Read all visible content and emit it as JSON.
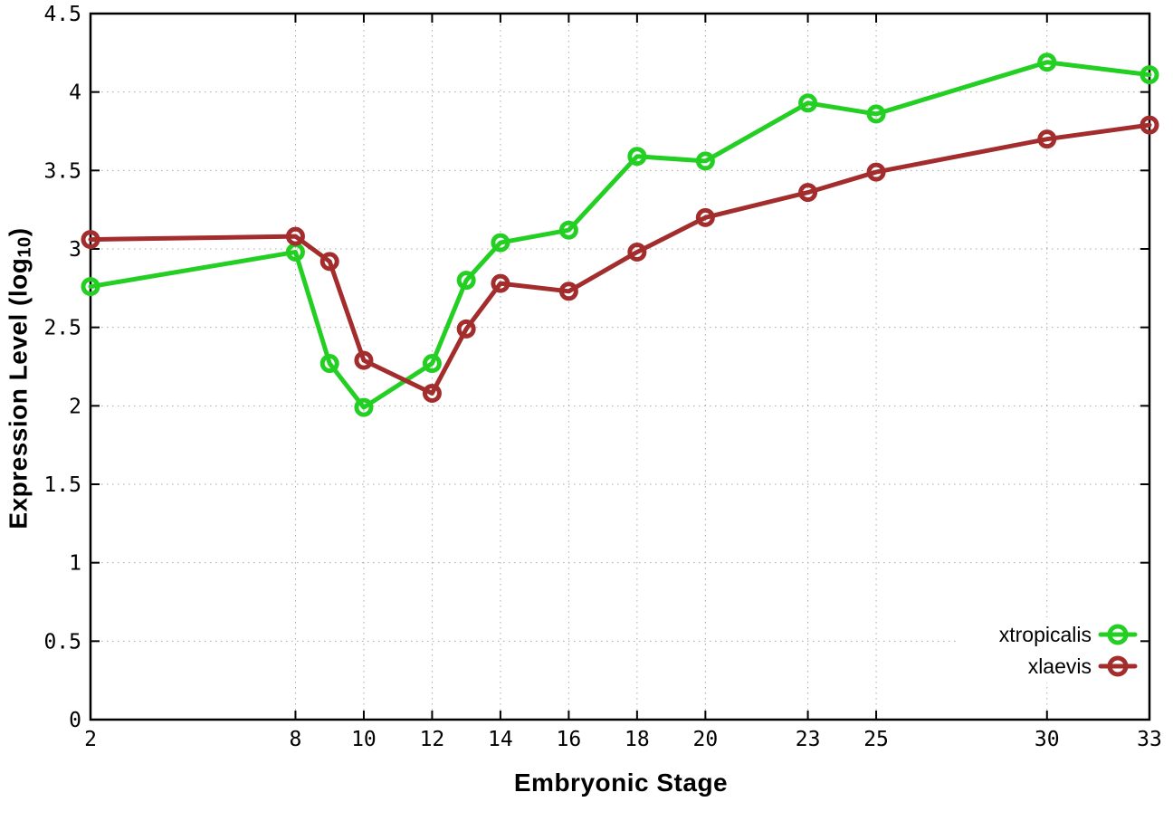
{
  "chart_data": {
    "type": "line",
    "title": "",
    "xlabel": "Embryonic Stage",
    "ylabel": "Expression Level (log10)",
    "ylabel_parts": {
      "prefix": "Expression Level (log",
      "sub": "10",
      "suffix": ")"
    },
    "xlim": [
      2,
      33
    ],
    "ylim": [
      0,
      4.5
    ],
    "x_tick_values": [
      2,
      8,
      10,
      12,
      14,
      16,
      18,
      20,
      23,
      25,
      30,
      33
    ],
    "x_tick_labels": [
      "2",
      "8",
      "10",
      "12",
      "14",
      "16",
      "18",
      "20",
      "23",
      "25",
      "30",
      "33"
    ],
    "y_tick_values": [
      0,
      0.5,
      1,
      1.5,
      2,
      2.5,
      3,
      3.5,
      4,
      4.5
    ],
    "y_tick_labels": [
      "0",
      "0.5",
      "1",
      "1.5",
      "2",
      "2.5",
      "3",
      "3.5",
      "4",
      "4.5"
    ],
    "grid": true,
    "legend_position": "bottom-right",
    "x": [
      2,
      8,
      9,
      10,
      12,
      13,
      14,
      16,
      18,
      20,
      23,
      25,
      30,
      33
    ],
    "series": [
      {
        "name": "xtropicalis",
        "color": "#24cf24",
        "values": [
          2.76,
          2.98,
          2.27,
          1.99,
          2.27,
          2.8,
          3.04,
          3.12,
          3.59,
          3.56,
          3.93,
          3.86,
          4.19,
          4.11
        ]
      },
      {
        "name": "xlaevis",
        "color": "#a32d2d",
        "values": [
          3.06,
          3.08,
          2.92,
          2.29,
          2.08,
          2.49,
          2.78,
          2.73,
          2.98,
          3.2,
          3.36,
          3.49,
          3.7,
          3.79
        ]
      }
    ],
    "colors": {
      "background": "#ffffff",
      "border": "#000000",
      "grid": "#a8a8a8",
      "tick_text": "#000000"
    }
  }
}
